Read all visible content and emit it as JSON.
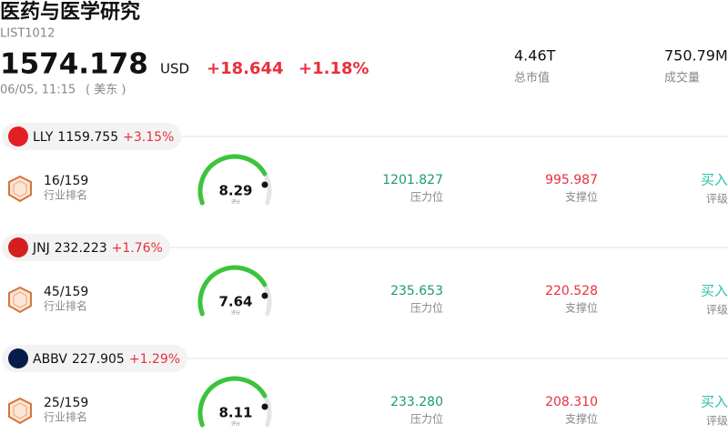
{
  "header": {
    "title": "医药与医学研究",
    "code": "LIST1012",
    "price": "1574.178",
    "currency": "USD",
    "change": "+18.644",
    "change_pct": "+1.18%",
    "time": "06/05, 11:15",
    "timezone": "( 美东 )"
  },
  "stats": [
    {
      "value": "4.46T",
      "label": "总市值"
    },
    {
      "value": "750.79M",
      "label": "成交量"
    }
  ],
  "stocks": [
    {
      "ticker": "LLY",
      "price": "1159.755",
      "change_pct": "+3.15%",
      "color": "#e31e24",
      "rank": "16/159",
      "rank_label": "行业排名",
      "score": "8.29",
      "score_label": "评分",
      "resistance": "1201.827",
      "resistance_label": "压力位",
      "support": "995.987",
      "support_label": "支撑位",
      "rating": "买入",
      "rating_label": "评级"
    },
    {
      "ticker": "JNJ",
      "price": "232.223",
      "change_pct": "+1.76%",
      "color": "#d51f1f",
      "rank": "45/159",
      "rank_label": "行业排名",
      "score": "7.64",
      "score_label": "评分",
      "resistance": "235.653",
      "resistance_label": "压力位",
      "support": "220.528",
      "support_label": "支撑位",
      "rating": "买入",
      "rating_label": "评级"
    },
    {
      "ticker": "ABBV",
      "price": "227.905",
      "change_pct": "+1.29%",
      "color": "#071d49",
      "rank": "25/159",
      "rank_label": "行业排名",
      "score": "8.11",
      "score_label": "评分",
      "resistance": "233.280",
      "resistance_label": "压力位",
      "support": "208.310",
      "support_label": "支撑位",
      "rating": "买入",
      "rating_label": "评级"
    }
  ]
}
